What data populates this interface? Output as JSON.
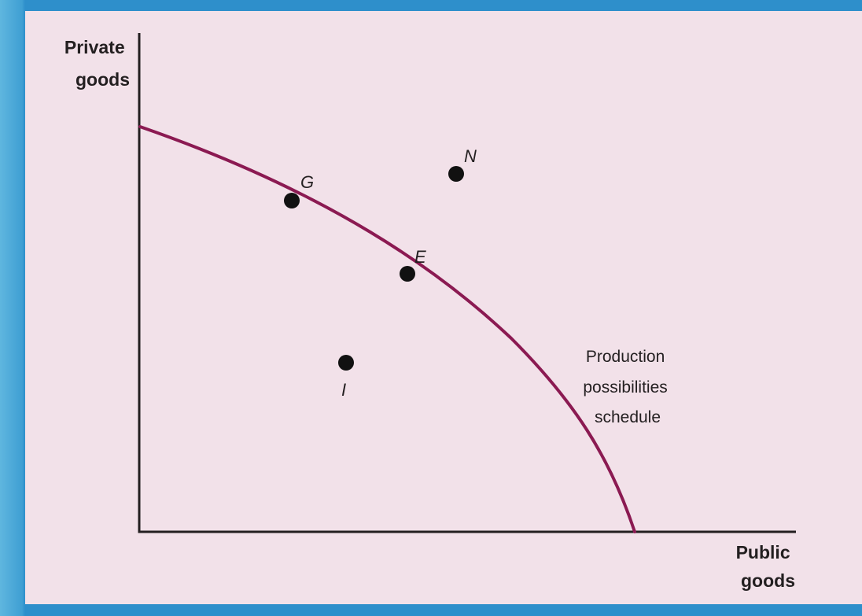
{
  "y_axis_label": [
    "Private",
    "goods"
  ],
  "x_axis_label": [
    "Public",
    "goods"
  ],
  "curve_label": [
    "Production",
    "possibilities",
    "schedule"
  ],
  "points": [
    {
      "id": "G",
      "label": "G"
    },
    {
      "id": "E",
      "label": "E"
    },
    {
      "id": "N",
      "label": "N"
    },
    {
      "id": "I",
      "label": "I"
    }
  ],
  "colors": {
    "background": "#f2e1e9",
    "frame": "#2e8fcb",
    "curve": "#8b1a52",
    "axis": "#231f20",
    "point": "#111111"
  }
}
